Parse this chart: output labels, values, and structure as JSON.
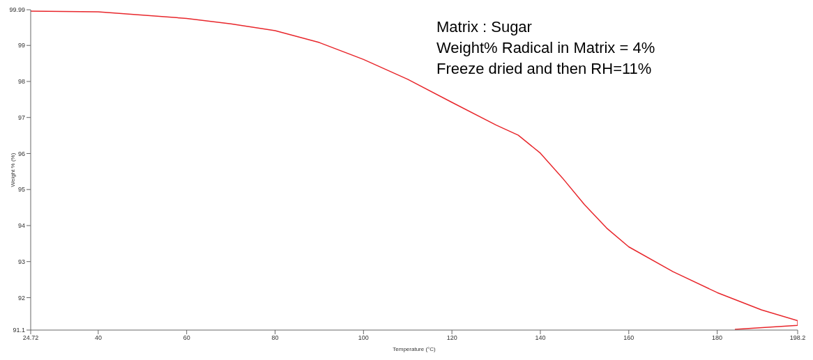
{
  "chart_data": {
    "type": "line",
    "xlabel": "Temperature (°C)",
    "ylabel": "Weight % (%)",
    "annotations": [
      "Matrix : Sugar",
      "Weight% Radical in Matrix = 4%",
      "Freeze dried and then RH=11%"
    ],
    "series": [
      {
        "color": "#e8262b",
        "x": [
          24.72,
          40,
          60,
          70,
          80,
          90,
          100,
          110,
          120,
          130,
          135,
          140,
          145,
          150,
          155,
          160,
          170,
          180,
          190,
          198.2,
          198.2,
          184
        ],
        "values": [
          99.95,
          99.93,
          99.75,
          99.6,
          99.41,
          99.08,
          98.61,
          98.06,
          97.42,
          96.79,
          96.51,
          96.01,
          95.32,
          94.58,
          93.93,
          93.41,
          92.72,
          92.14,
          91.66,
          91.36,
          91.23,
          91.12
        ]
      }
    ],
    "xlim": [
      24.72,
      198.2
    ],
    "xticks": [
      24.72,
      40,
      60,
      80,
      100,
      120,
      140,
      160,
      180,
      198.2
    ],
    "ylim": [
      91.1,
      99.99
    ],
    "yticks": [
      91.1,
      92,
      93,
      94,
      95,
      96,
      97,
      98,
      99,
      99.99
    ],
    "grid": false,
    "legend": false,
    "marker": "none",
    "line_style": "solid"
  }
}
